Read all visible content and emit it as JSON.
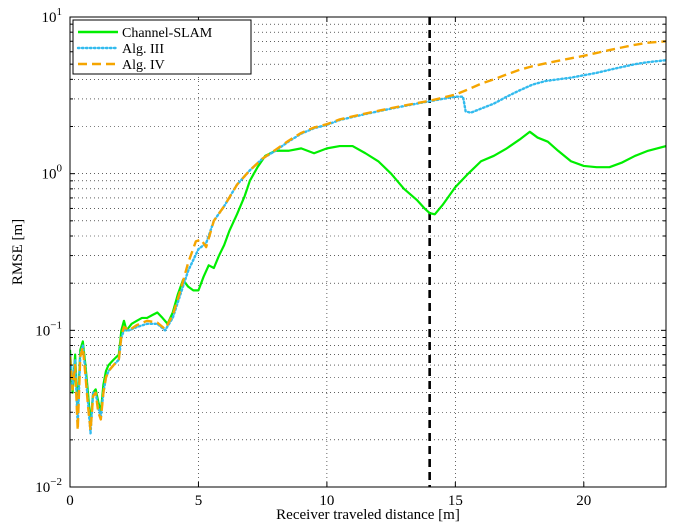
{
  "chart_data": {
    "type": "line",
    "xlabel": "Receiver traveled distance [m]",
    "ylabel": "RMSE [m]",
    "xlim": [
      0,
      23.2
    ],
    "ylim": [
      0.01,
      10
    ],
    "yscale": "log",
    "grid": true,
    "legend_position": "top-left",
    "x_ticks": [
      0,
      5,
      10,
      15,
      20
    ],
    "y_ticks": [
      {
        "value": 0.01,
        "base": "10",
        "exp": "−2"
      },
      {
        "value": 0.1,
        "base": "10",
        "exp": "−1"
      },
      {
        "value": 1,
        "base": "10",
        "exp": "0"
      },
      {
        "value": 10,
        "base": "10",
        "exp": "1"
      }
    ],
    "vline": {
      "x": 14.0,
      "color": "#000000",
      "style": "dashed"
    },
    "series": [
      {
        "name": "Channel-SLAM",
        "color": "#00ee00",
        "style": "solid",
        "points": [
          [
            0,
            0.075
          ],
          [
            0.1,
            0.04
          ],
          [
            0.2,
            0.07
          ],
          [
            0.3,
            0.03
          ],
          [
            0.4,
            0.075
          ],
          [
            0.5,
            0.085
          ],
          [
            0.6,
            0.06
          ],
          [
            0.7,
            0.04
          ],
          [
            0.8,
            0.025
          ],
          [
            0.9,
            0.04
          ],
          [
            1.0,
            0.042
          ],
          [
            1.1,
            0.035
          ],
          [
            1.2,
            0.03
          ],
          [
            1.3,
            0.045
          ],
          [
            1.4,
            0.055
          ],
          [
            1.5,
            0.06
          ],
          [
            1.7,
            0.065
          ],
          [
            1.9,
            0.07
          ],
          [
            2.0,
            0.1
          ],
          [
            2.1,
            0.115
          ],
          [
            2.2,
            0.1
          ],
          [
            2.4,
            0.11
          ],
          [
            2.6,
            0.115
          ],
          [
            2.8,
            0.12
          ],
          [
            3.0,
            0.12
          ],
          [
            3.2,
            0.125
          ],
          [
            3.4,
            0.13
          ],
          [
            3.6,
            0.12
          ],
          [
            3.8,
            0.11
          ],
          [
            4.0,
            0.13
          ],
          [
            4.2,
            0.17
          ],
          [
            4.4,
            0.21
          ],
          [
            4.6,
            0.19
          ],
          [
            4.8,
            0.18
          ],
          [
            5.0,
            0.18
          ],
          [
            5.2,
            0.22
          ],
          [
            5.4,
            0.26
          ],
          [
            5.6,
            0.25
          ],
          [
            5.8,
            0.3
          ],
          [
            6.0,
            0.35
          ],
          [
            6.2,
            0.43
          ],
          [
            6.5,
            0.55
          ],
          [
            6.8,
            0.72
          ],
          [
            7.0,
            0.9
          ],
          [
            7.3,
            1.1
          ],
          [
            7.6,
            1.3
          ],
          [
            8.0,
            1.4
          ],
          [
            8.5,
            1.4
          ],
          [
            9.0,
            1.45
          ],
          [
            9.5,
            1.35
          ],
          [
            10.0,
            1.45
          ],
          [
            10.5,
            1.5
          ],
          [
            11.0,
            1.5
          ],
          [
            11.5,
            1.35
          ],
          [
            12.0,
            1.2
          ],
          [
            12.5,
            1.0
          ],
          [
            13.0,
            0.8
          ],
          [
            13.5,
            0.68
          ],
          [
            13.8,
            0.6
          ],
          [
            14.0,
            0.56
          ],
          [
            14.2,
            0.55
          ],
          [
            14.5,
            0.63
          ],
          [
            15.0,
            0.82
          ],
          [
            15.5,
            1.0
          ],
          [
            16.0,
            1.2
          ],
          [
            16.5,
            1.3
          ],
          [
            17.0,
            1.45
          ],
          [
            17.5,
            1.65
          ],
          [
            17.9,
            1.85
          ],
          [
            18.2,
            1.7
          ],
          [
            18.6,
            1.6
          ],
          [
            19.0,
            1.4
          ],
          [
            19.5,
            1.2
          ],
          [
            20.0,
            1.12
          ],
          [
            20.5,
            1.1
          ],
          [
            21.0,
            1.1
          ],
          [
            21.5,
            1.18
          ],
          [
            22.0,
            1.3
          ],
          [
            22.5,
            1.4
          ],
          [
            23.2,
            1.5
          ]
        ]
      },
      {
        "name": "Alg. III",
        "color": "#33bbee",
        "style": "dotted",
        "points": [
          [
            0,
            0.07
          ],
          [
            0.1,
            0.045
          ],
          [
            0.2,
            0.065
          ],
          [
            0.3,
            0.025
          ],
          [
            0.4,
            0.07
          ],
          [
            0.5,
            0.08
          ],
          [
            0.6,
            0.055
          ],
          [
            0.7,
            0.035
          ],
          [
            0.8,
            0.022
          ],
          [
            0.9,
            0.04
          ],
          [
            1.0,
            0.04
          ],
          [
            1.1,
            0.032
          ],
          [
            1.2,
            0.028
          ],
          [
            1.3,
            0.04
          ],
          [
            1.4,
            0.05
          ],
          [
            1.5,
            0.055
          ],
          [
            1.7,
            0.06
          ],
          [
            1.9,
            0.065
          ],
          [
            2.0,
            0.09
          ],
          [
            2.1,
            0.1
          ],
          [
            2.3,
            0.1
          ],
          [
            2.6,
            0.105
          ],
          [
            3.0,
            0.11
          ],
          [
            3.4,
            0.11
          ],
          [
            3.7,
            0.1
          ],
          [
            4.0,
            0.12
          ],
          [
            4.3,
            0.17
          ],
          [
            4.6,
            0.24
          ],
          [
            5.0,
            0.33
          ],
          [
            5.3,
            0.36
          ],
          [
            5.6,
            0.5
          ],
          [
            6.0,
            0.62
          ],
          [
            6.5,
            0.85
          ],
          [
            7.0,
            1.05
          ],
          [
            7.5,
            1.25
          ],
          [
            8.0,
            1.4
          ],
          [
            8.5,
            1.6
          ],
          [
            9.0,
            1.8
          ],
          [
            9.5,
            1.95
          ],
          [
            10.0,
            2.05
          ],
          [
            10.5,
            2.2
          ],
          [
            11.0,
            2.3
          ],
          [
            11.5,
            2.4
          ],
          [
            12.0,
            2.5
          ],
          [
            12.5,
            2.6
          ],
          [
            13.0,
            2.7
          ],
          [
            13.5,
            2.8
          ],
          [
            14.0,
            2.9
          ],
          [
            14.5,
            3.0
          ],
          [
            15.0,
            3.1
          ],
          [
            15.3,
            3.1
          ],
          [
            15.4,
            2.5
          ],
          [
            15.6,
            2.45
          ],
          [
            16.0,
            2.6
          ],
          [
            16.5,
            2.8
          ],
          [
            17.0,
            3.1
          ],
          [
            17.5,
            3.4
          ],
          [
            18.0,
            3.7
          ],
          [
            18.5,
            3.9
          ],
          [
            19.0,
            4.0
          ],
          [
            19.5,
            4.1
          ],
          [
            20.0,
            4.25
          ],
          [
            20.5,
            4.4
          ],
          [
            21.0,
            4.6
          ],
          [
            21.5,
            4.8
          ],
          [
            22.0,
            5.0
          ],
          [
            22.5,
            5.15
          ],
          [
            23.2,
            5.3
          ]
        ]
      },
      {
        "name": "Alg. IV",
        "color": "#f5a500",
        "style": "dashed",
        "points": [
          [
            0,
            0.068
          ],
          [
            0.1,
            0.042
          ],
          [
            0.2,
            0.06
          ],
          [
            0.3,
            0.023
          ],
          [
            0.4,
            0.068
          ],
          [
            0.5,
            0.078
          ],
          [
            0.6,
            0.052
          ],
          [
            0.7,
            0.033
          ],
          [
            0.8,
            0.023
          ],
          [
            0.9,
            0.038
          ],
          [
            1.0,
            0.04
          ],
          [
            1.1,
            0.03
          ],
          [
            1.2,
            0.027
          ],
          [
            1.3,
            0.04
          ],
          [
            1.4,
            0.05
          ],
          [
            1.5,
            0.055
          ],
          [
            1.7,
            0.06
          ],
          [
            1.9,
            0.065
          ],
          [
            2.0,
            0.092
          ],
          [
            2.1,
            0.105
          ],
          [
            2.3,
            0.1
          ],
          [
            2.6,
            0.108
          ],
          [
            3.0,
            0.115
          ],
          [
            3.4,
            0.112
          ],
          [
            3.7,
            0.102
          ],
          [
            4.0,
            0.125
          ],
          [
            4.3,
            0.18
          ],
          [
            4.6,
            0.27
          ],
          [
            4.9,
            0.37
          ],
          [
            5.1,
            0.38
          ],
          [
            5.3,
            0.34
          ],
          [
            5.6,
            0.5
          ],
          [
            6.0,
            0.62
          ],
          [
            6.5,
            0.85
          ],
          [
            7.0,
            1.05
          ],
          [
            7.5,
            1.25
          ],
          [
            8.0,
            1.42
          ],
          [
            8.5,
            1.62
          ],
          [
            9.0,
            1.82
          ],
          [
            9.5,
            1.97
          ],
          [
            10.0,
            2.07
          ],
          [
            10.5,
            2.22
          ],
          [
            11.0,
            2.32
          ],
          [
            11.5,
            2.42
          ],
          [
            12.0,
            2.52
          ],
          [
            12.5,
            2.62
          ],
          [
            13.0,
            2.72
          ],
          [
            13.5,
            2.82
          ],
          [
            14.0,
            2.92
          ],
          [
            14.5,
            3.05
          ],
          [
            15.0,
            3.2
          ],
          [
            15.5,
            3.45
          ],
          [
            16.0,
            3.75
          ],
          [
            16.5,
            4.0
          ],
          [
            17.0,
            4.3
          ],
          [
            17.5,
            4.6
          ],
          [
            18.0,
            4.85
          ],
          [
            18.5,
            5.05
          ],
          [
            19.0,
            5.25
          ],
          [
            19.5,
            5.45
          ],
          [
            20.0,
            5.65
          ],
          [
            20.5,
            5.9
          ],
          [
            21.0,
            6.15
          ],
          [
            21.5,
            6.4
          ],
          [
            22.0,
            6.65
          ],
          [
            22.5,
            6.85
          ],
          [
            23.2,
            7.0
          ]
        ]
      }
    ]
  }
}
